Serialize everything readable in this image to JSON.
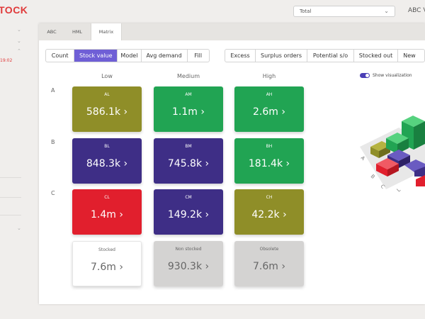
{
  "brand": "TOCK",
  "topbar": {
    "select_value": "Total",
    "right_text": "ABC V"
  },
  "sidebar": {
    "timestamp": "19:02"
  },
  "tabs": [
    {
      "label": "ABC",
      "active": false
    },
    {
      "label": "HML",
      "active": false
    },
    {
      "label": "Matrix",
      "active": true
    }
  ],
  "metric_toggle": [
    {
      "label": "Count",
      "active": false
    },
    {
      "label": "Stock value",
      "active": true
    },
    {
      "label": "Model",
      "active": false
    },
    {
      "label": "Avg demand",
      "active": false
    },
    {
      "label": "Fill",
      "active": false
    }
  ],
  "filter_toggle": [
    {
      "label": "Excess"
    },
    {
      "label": "Surplus orders"
    },
    {
      "label": "Potential s/o"
    },
    {
      "label": "Stocked out"
    },
    {
      "label": "New"
    }
  ],
  "columns": [
    "Low",
    "Medium",
    "High"
  ],
  "rows": [
    "A",
    "B",
    "C"
  ],
  "matrix": [
    [
      {
        "code": "AL",
        "value": "586.1k",
        "color": "#8f8e28"
      },
      {
        "code": "AM",
        "value": "1.1m",
        "color": "#21a453"
      },
      {
        "code": "AH",
        "value": "2.6m",
        "color": "#21a453"
      }
    ],
    [
      {
        "code": "BL",
        "value": "848.3k",
        "color": "#3e2e86"
      },
      {
        "code": "BM",
        "value": "745.8k",
        "color": "#3e2e86"
      },
      {
        "code": "BH",
        "value": "181.4k",
        "color": "#21a453"
      }
    ],
    [
      {
        "code": "CL",
        "value": "1.4m",
        "color": "#e11f2d"
      },
      {
        "code": "CM",
        "value": "149.2k",
        "color": "#3e2e86"
      },
      {
        "code": "CH",
        "value": "42.2k",
        "color": "#8f8e28"
      }
    ]
  ],
  "summary": [
    {
      "label": "Stocked",
      "value": "7.6m"
    },
    {
      "label": "Non stocked",
      "value": "930.3k"
    },
    {
      "label": "Obsolete",
      "value": "7.6m"
    }
  ],
  "visualization_toggle": {
    "label": "Show visualization",
    "on": true
  },
  "viz_labels": {
    "row_a": "A",
    "row_b": "B",
    "row_c": "C",
    "col_l": "L"
  },
  "chevron": "›"
}
